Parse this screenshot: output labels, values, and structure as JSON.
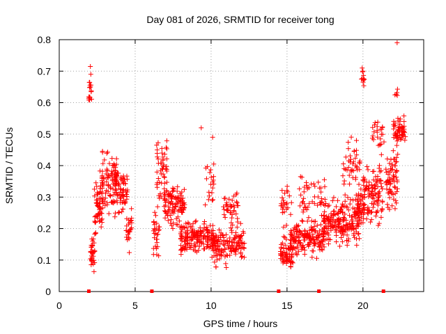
{
  "chart_data": {
    "type": "scatter",
    "title": "Day 081 of 2026, SRMTID for receiver tong",
    "xlabel": "GPS time / hours",
    "ylabel": "SRMTID / TECUs",
    "xlim": [
      0,
      24
    ],
    "ylim": [
      0,
      0.8
    ],
    "xticks": [
      "0",
      "5",
      "10",
      "15",
      "20"
    ],
    "yticks": [
      "0",
      "0.1",
      "0.2",
      "0.3",
      "0.4",
      "0.5",
      "0.6",
      "0.7",
      "0.8"
    ],
    "grid": true,
    "marker": "+",
    "color": "#ff0000",
    "zero_markers_x": [
      1.95,
      6.1,
      14.45,
      17.1,
      21.35
    ],
    "clusters": [
      {
        "x0": 1.95,
        "x1": 2.15,
        "base": 0.63,
        "spread": 0.05,
        "n": 18
      },
      {
        "x0": 2.05,
        "x1": 2.35,
        "base": 0.12,
        "spread": 0.08,
        "n": 35
      },
      {
        "x0": 2.3,
        "x1": 2.9,
        "base": 0.28,
        "spread": 0.14,
        "n": 60
      },
      {
        "x0": 2.8,
        "x1": 3.8,
        "base": 0.34,
        "spread": 0.14,
        "n": 90
      },
      {
        "x0": 3.7,
        "x1": 4.5,
        "base": 0.32,
        "spread": 0.11,
        "n": 70
      },
      {
        "x0": 4.4,
        "x1": 4.8,
        "base": 0.2,
        "spread": 0.1,
        "n": 25
      },
      {
        "x0": 6.2,
        "x1": 6.6,
        "base": 0.18,
        "spread": 0.1,
        "n": 30
      },
      {
        "x0": 6.4,
        "x1": 7.1,
        "base": 0.38,
        "spread": 0.14,
        "n": 50
      },
      {
        "x0": 6.9,
        "x1": 8.3,
        "base": 0.27,
        "spread": 0.09,
        "n": 110
      },
      {
        "x0": 8.0,
        "x1": 10.2,
        "base": 0.17,
        "spread": 0.07,
        "n": 170
      },
      {
        "x0": 9.5,
        "x1": 10.3,
        "base": 0.33,
        "spread": 0.13,
        "n": 20
      },
      {
        "x0": 10.0,
        "x1": 12.2,
        "base": 0.15,
        "spread": 0.08,
        "n": 150
      },
      {
        "x0": 10.8,
        "x1": 11.8,
        "base": 0.26,
        "spread": 0.07,
        "n": 40
      },
      {
        "x0": 14.55,
        "x1": 15.4,
        "base": 0.12,
        "spread": 0.07,
        "n": 70
      },
      {
        "x0": 14.6,
        "x1": 15.3,
        "base": 0.27,
        "spread": 0.12,
        "n": 25
      },
      {
        "x0": 15.2,
        "x1": 17.5,
        "base": 0.17,
        "spread": 0.08,
        "n": 170
      },
      {
        "x0": 15.8,
        "x1": 17.5,
        "base": 0.3,
        "spread": 0.1,
        "n": 50
      },
      {
        "x0": 17.4,
        "x1": 19.8,
        "base": 0.22,
        "spread": 0.1,
        "n": 200
      },
      {
        "x0": 18.6,
        "x1": 19.8,
        "base": 0.4,
        "spread": 0.13,
        "n": 45
      },
      {
        "x0": 19.6,
        "x1": 20.05,
        "base": 0.27,
        "spread": 0.08,
        "n": 35
      },
      {
        "x0": 19.9,
        "x1": 20.1,
        "base": 0.68,
        "spread": 0.04,
        "n": 10
      },
      {
        "x0": 20.0,
        "x1": 21.3,
        "base": 0.3,
        "spread": 0.13,
        "n": 110
      },
      {
        "x0": 20.6,
        "x1": 21.4,
        "base": 0.5,
        "spread": 0.08,
        "n": 25
      },
      {
        "x0": 21.5,
        "x1": 22.3,
        "base": 0.35,
        "spread": 0.13,
        "n": 70
      },
      {
        "x0": 22.0,
        "x1": 22.8,
        "base": 0.51,
        "spread": 0.06,
        "n": 60
      },
      {
        "x0": 22.1,
        "x1": 22.3,
        "base": 0.63,
        "spread": 0.02,
        "n": 5
      }
    ],
    "extra_points": [
      [
        22.25,
        0.79
      ],
      [
        2.05,
        0.715
      ],
      [
        19.95,
        0.71
      ],
      [
        20.0,
        0.7
      ],
      [
        2.08,
        0.69
      ],
      [
        9.35,
        0.52
      ],
      [
        10.1,
        0.49
      ]
    ]
  }
}
